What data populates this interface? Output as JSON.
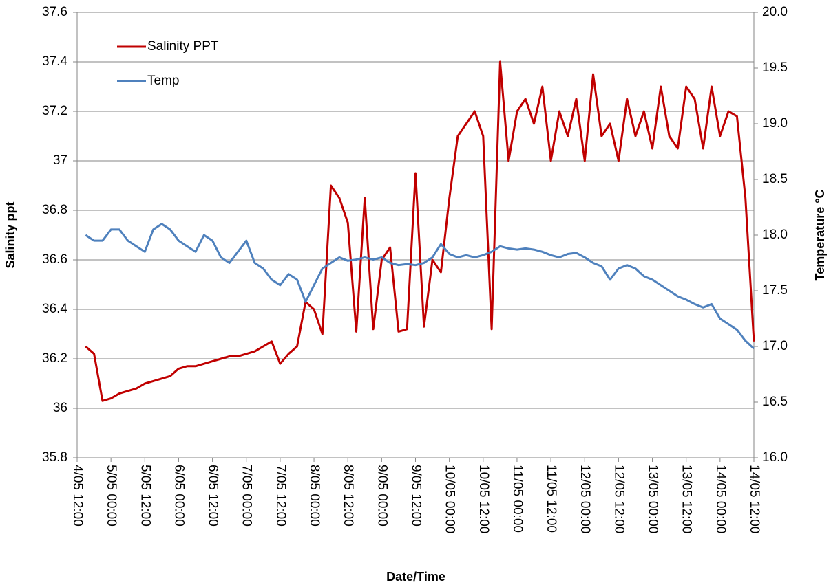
{
  "chart_data": {
    "type": "line",
    "x_label": "Date/Time",
    "y_label": "Salinity ppt",
    "y2_label": "Temperature °C",
    "grid": true,
    "legend": "upper left",
    "xlim": [
      "4/05 12:00",
      "14/05 12:00"
    ],
    "xticks": [
      "4/05 12:00",
      "5/05 00:00",
      "5/05 12:00",
      "6/05 00:00",
      "6/05 12:00",
      "7/05 00:00",
      "7/05 12:00",
      "8/05 00:00",
      "8/05 12:00",
      "9/05 00:00",
      "9/05 12:00",
      "10/05 00:00",
      "10/05 12:00",
      "11/05 00:00",
      "11/05 12:00",
      "12/05 00:00",
      "12/05 12:00",
      "13/05 00:00",
      "13/05 12:00",
      "14/05 00:00",
      "14/05 12:00"
    ],
    "ylim": [
      35.8,
      37.6
    ],
    "yticks": [
      35.8,
      36,
      36.2,
      36.4,
      36.6,
      36.8,
      37,
      37.2,
      37.4,
      37.6
    ],
    "y2lim": [
      16,
      20
    ],
    "y2ticks": [
      {
        "value": 16,
        "label": "16.0"
      },
      16.5,
      {
        "value": 17,
        "label": "17.0"
      },
      17.5,
      {
        "value": 18,
        "label": "18.0"
      },
      18.5,
      {
        "value": 19,
        "label": "19.0"
      },
      19.5,
      {
        "value": 20,
        "label": "20.0"
      }
    ],
    "x": [
      "4/05 15:00",
      "4/05 18:00",
      "4/05 21:00",
      "5/05 00:00",
      "5/05 03:00",
      "5/05 06:00",
      "5/05 09:00",
      "5/05 12:00",
      "5/05 15:00",
      "5/05 18:00",
      "5/05 21:00",
      "6/05 00:00",
      "6/05 03:00",
      "6/05 06:00",
      "6/05 09:00",
      "6/05 12:00",
      "6/05 15:00",
      "6/05 18:00",
      "6/05 21:00",
      "7/05 00:00",
      "7/05 03:00",
      "7/05 06:00",
      "7/05 09:00",
      "7/05 12:00",
      "7/05 15:00",
      "7/05 18:00",
      "7/05 21:00",
      "8/05 00:00",
      "8/05 03:00",
      "8/05 06:00",
      "8/05 09:00",
      "8/05 12:00",
      "8/05 15:00",
      "8/05 18:00",
      "8/05 21:00",
      "9/05 00:00",
      "9/05 03:00",
      "9/05 06:00",
      "9/05 09:00",
      "9/05 12:00",
      "9/05 15:00",
      "9/05 18:00",
      "9/05 21:00",
      "10/05 00:00",
      "10/05 03:00",
      "10/05 06:00",
      "10/05 09:00",
      "10/05 12:00",
      "10/05 15:00",
      "10/05 18:00",
      "10/05 21:00",
      "11/05 00:00",
      "11/05 03:00",
      "11/05 06:00",
      "11/05 09:00",
      "11/05 12:00",
      "11/05 15:00",
      "11/05 18:00",
      "11/05 21:00",
      "12/05 00:00",
      "12/05 03:00",
      "12/05 06:00",
      "12/05 09:00",
      "12/05 12:00",
      "12/05 15:00",
      "12/05 18:00",
      "12/05 21:00",
      "13/05 00:00",
      "13/05 03:00",
      "13/05 06:00",
      "13/05 09:00",
      "13/05 12:00",
      "13/05 15:00",
      "13/05 18:00",
      "13/05 21:00",
      "14/05 00:00",
      "14/05 03:00",
      "14/05 06:00",
      "14/05 09:00",
      "14/05 12:00"
    ],
    "series": [
      {
        "name": "Salinity PPT",
        "color": "#c00000",
        "values": [
          36.25,
          36.22,
          36.03,
          36.04,
          36.06,
          36.07,
          36.08,
          36.1,
          36.11,
          36.12,
          36.13,
          36.16,
          36.17,
          36.17,
          36.18,
          36.19,
          36.2,
          36.21,
          36.21,
          36.22,
          36.23,
          36.25,
          36.27,
          36.18,
          36.22,
          36.25,
          36.43,
          36.4,
          36.3,
          36.9,
          36.85,
          36.75,
          36.31,
          36.85,
          36.32,
          36.6,
          36.65,
          36.31,
          36.32,
          36.95,
          36.33,
          36.6,
          36.55,
          36.85,
          37.1,
          37.15,
          37.2,
          37.1,
          36.32,
          37.4,
          37.0,
          37.2,
          37.25,
          37.15,
          37.3,
          37.0,
          37.2,
          37.1,
          37.25,
          37.0,
          37.35,
          37.1,
          37.15,
          37.0,
          37.25,
          37.1,
          37.2,
          37.05,
          37.3,
          37.1,
          37.05,
          37.3,
          37.25,
          37.05,
          37.3,
          37.1,
          37.2,
          37.18,
          36.85,
          36.27
        ]
      },
      {
        "name": "Temp",
        "color": "#4f81bd",
        "axis": "y2",
        "values": [
          18.0,
          17.95,
          17.95,
          18.05,
          18.05,
          17.95,
          17.9,
          17.85,
          18.05,
          18.1,
          18.05,
          17.95,
          17.9,
          17.85,
          18.0,
          17.95,
          17.8,
          17.75,
          17.85,
          17.95,
          17.75,
          17.7,
          17.6,
          17.55,
          17.65,
          17.6,
          17.4,
          17.55,
          17.7,
          17.75,
          17.8,
          17.77,
          17.78,
          17.8,
          17.78,
          17.8,
          17.75,
          17.73,
          17.74,
          17.73,
          17.75,
          17.8,
          17.92,
          17.83,
          17.8,
          17.82,
          17.8,
          17.82,
          17.85,
          17.9,
          17.88,
          17.87,
          17.88,
          17.87,
          17.85,
          17.82,
          17.8,
          17.83,
          17.84,
          17.8,
          17.75,
          17.72,
          17.6,
          17.7,
          17.73,
          17.7,
          17.63,
          17.6,
          17.55,
          17.5,
          17.45,
          17.42,
          17.38,
          17.35,
          17.38,
          17.25,
          17.2,
          17.15,
          17.05,
          16.98
        ]
      }
    ]
  }
}
